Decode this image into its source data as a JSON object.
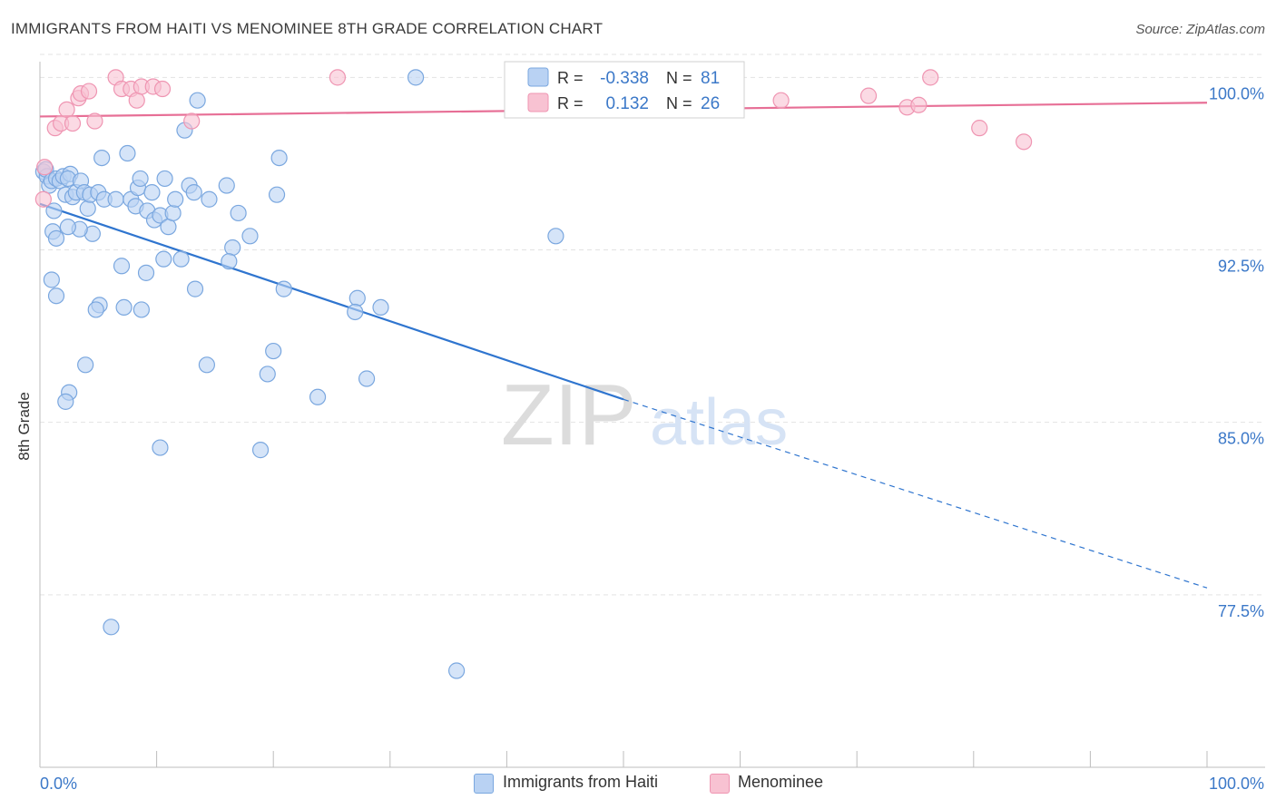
{
  "title": "IMMIGRANTS FROM HAITI VS MENOMINEE 8TH GRADE CORRELATION CHART",
  "source": "Source: ZipAtlas.com",
  "watermark": {
    "zip": "ZIP",
    "atlas": "atlas"
  },
  "colors": {
    "blue_fill": "#b9d2f3",
    "blue_stroke": "#7aa7df",
    "blue_line": "#2f75cf",
    "blue_text": "#3b78c8",
    "pink_fill": "#f8c2d2",
    "pink_stroke": "#ef95b2",
    "pink_line": "#e76f96",
    "grid": "#e3e3e3",
    "axis": "#bdbdbd"
  },
  "stats": {
    "r_label": "R =",
    "n_label": "N =",
    "rows": [
      {
        "r": "-0.338",
        "n": "81"
      },
      {
        "r": "0.132",
        "n": "26"
      }
    ]
  },
  "chart_data": {
    "type": "scatter",
    "title": "IMMIGRANTS FROM HAITI VS MENOMINEE 8TH GRADE CORRELATION CHART",
    "xlabel": "",
    "ylabel": "8th Grade",
    "xlim": [
      0,
      100
    ],
    "ylim": [
      70.0,
      101.0
    ],
    "x_tick_labels": [
      "0.0%",
      "100.0%"
    ],
    "y_ticks": [
      100.0,
      92.5,
      85.0,
      77.5
    ],
    "y_tick_labels": [
      "100.0%",
      "92.5%",
      "85.0%",
      "77.5%"
    ],
    "grid": true,
    "legend": "bottom-center",
    "series": [
      {
        "name": "Immigrants from Haiti",
        "color": "#b9d2f3",
        "trend": {
          "x0": 0,
          "y0": 94.5,
          "x1": 50,
          "y1": 86.0,
          "x_end": 100,
          "y_end": 77.8
        },
        "points": [
          [
            0.3,
            95.9
          ],
          [
            0.6,
            95.7
          ],
          [
            0.8,
            95.3
          ],
          [
            0.5,
            96.0
          ],
          [
            1.0,
            95.5
          ],
          [
            1.2,
            94.2
          ],
          [
            1.1,
            93.3
          ],
          [
            1.4,
            95.6
          ],
          [
            1.7,
            95.5
          ],
          [
            2.0,
            95.7
          ],
          [
            2.2,
            94.9
          ],
          [
            2.6,
            95.8
          ],
          [
            2.4,
            95.6
          ],
          [
            2.8,
            94.8
          ],
          [
            3.1,
            95.0
          ],
          [
            3.5,
            95.5
          ],
          [
            3.8,
            95.0
          ],
          [
            4.1,
            94.3
          ],
          [
            4.3,
            94.9
          ],
          [
            4.5,
            93.2
          ],
          [
            5.0,
            95.0
          ],
          [
            5.5,
            94.7
          ],
          [
            5.3,
            96.5
          ],
          [
            6.5,
            94.7
          ],
          [
            7.5,
            96.7
          ],
          [
            7.8,
            94.7
          ],
          [
            8.2,
            94.4
          ],
          [
            8.4,
            95.2
          ],
          [
            8.6,
            95.6
          ],
          [
            9.2,
            94.2
          ],
          [
            9.6,
            95.0
          ],
          [
            9.8,
            93.8
          ],
          [
            10.3,
            94.0
          ],
          [
            10.7,
            95.6
          ],
          [
            11.0,
            93.5
          ],
          [
            11.4,
            94.1
          ],
          [
            11.6,
            94.7
          ],
          [
            12.1,
            92.1
          ],
          [
            12.8,
            95.3
          ],
          [
            13.2,
            95.0
          ],
          [
            14.5,
            94.7
          ],
          [
            16.0,
            95.3
          ],
          [
            16.5,
            92.6
          ],
          [
            16.2,
            92.0
          ],
          [
            17.0,
            94.1
          ],
          [
            18.0,
            93.1
          ],
          [
            20.3,
            94.9
          ],
          [
            12.4,
            97.7
          ],
          [
            13.5,
            99.0
          ],
          [
            20.5,
            96.5
          ],
          [
            3.4,
            93.4
          ],
          [
            2.4,
            93.5
          ],
          [
            1.4,
            93.0
          ],
          [
            1.0,
            91.2
          ],
          [
            1.4,
            90.5
          ],
          [
            7.0,
            91.8
          ],
          [
            9.1,
            91.5
          ],
          [
            10.6,
            92.1
          ],
          [
            13.3,
            90.8
          ],
          [
            5.1,
            90.1
          ],
          [
            4.8,
            89.9
          ],
          [
            7.2,
            90.0
          ],
          [
            8.7,
            89.9
          ],
          [
            14.3,
            87.5
          ],
          [
            20.9,
            90.8
          ],
          [
            27.2,
            90.4
          ],
          [
            27.0,
            89.8
          ],
          [
            29.2,
            90.0
          ],
          [
            20.0,
            88.1
          ],
          [
            19.5,
            87.1
          ],
          [
            3.9,
            87.5
          ],
          [
            2.5,
            86.3
          ],
          [
            2.2,
            85.9
          ],
          [
            23.8,
            86.1
          ],
          [
            28.0,
            86.9
          ],
          [
            10.3,
            83.9
          ],
          [
            18.9,
            83.8
          ],
          [
            6.1,
            76.1
          ],
          [
            35.7,
            74.2
          ],
          [
            44.2,
            93.1
          ],
          [
            32.2,
            100.0
          ]
        ]
      },
      {
        "name": "Menominee",
        "color": "#f8c2d2",
        "trend": {
          "x0": 0,
          "y0": 98.3,
          "x1": 100,
          "y1": 98.9
        },
        "points": [
          [
            0.4,
            96.1
          ],
          [
            0.3,
            94.7
          ],
          [
            1.3,
            97.8
          ],
          [
            1.8,
            98.0
          ],
          [
            2.3,
            98.6
          ],
          [
            2.8,
            98.0
          ],
          [
            3.3,
            99.1
          ],
          [
            3.5,
            99.3
          ],
          [
            4.2,
            99.4
          ],
          [
            4.7,
            98.1
          ],
          [
            6.5,
            100.0
          ],
          [
            7.0,
            99.5
          ],
          [
            7.8,
            99.5
          ],
          [
            8.3,
            99.0
          ],
          [
            8.7,
            99.6
          ],
          [
            9.7,
            99.6
          ],
          [
            10.5,
            99.5
          ],
          [
            13.0,
            98.1
          ],
          [
            25.5,
            100.0
          ],
          [
            63.5,
            99.0
          ],
          [
            71.0,
            99.2
          ],
          [
            74.3,
            98.7
          ],
          [
            75.3,
            98.8
          ],
          [
            76.3,
            100.0
          ],
          [
            80.5,
            97.8
          ],
          [
            84.3,
            97.2
          ]
        ]
      }
    ]
  }
}
